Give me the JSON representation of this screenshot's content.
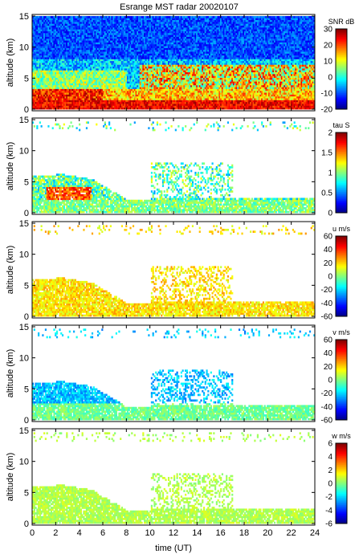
{
  "title": "Esrange MST radar 20020107",
  "chart_data": {
    "type": "heatmap",
    "title": "Esrange MST radar 20020107",
    "xlabel": "time (UT)",
    "xlim": [
      0,
      24
    ],
    "xticks": [
      0,
      2,
      4,
      6,
      8,
      10,
      12,
      14,
      16,
      18,
      20,
      22,
      24
    ],
    "ylabel": "altitude (km)",
    "ylim": [
      0,
      15
    ],
    "yticks": [
      0,
      5,
      10,
      15
    ],
    "panels": [
      {
        "id": "snr",
        "colorbar_title": "SNR dB",
        "clim": [
          -20,
          30
        ],
        "cticks": [
          -20,
          -10,
          0,
          10,
          20,
          30
        ],
        "colormap": "jet",
        "fill": "full",
        "features": "strong echoes (10-30 dB) below 3 km through the day, enhanced layer 3-7 km after 10 UT, noise (-15 to -5 dB) above 8 km"
      },
      {
        "id": "tau",
        "colorbar_title": "tau S",
        "clim": [
          0,
          2
        ],
        "cticks": [
          0,
          0.5,
          1,
          1.5,
          2
        ],
        "colormap": "jet",
        "fill": "sparse",
        "features": "values 0.5-1.5 s, maxima near 1.8 s around 1.5-5 UT at 2-4 km"
      },
      {
        "id": "u",
        "colorbar_title": "u m/s",
        "clim": [
          -60,
          60
        ],
        "cticks": [
          -60,
          -40,
          -20,
          0,
          20,
          40,
          60
        ],
        "colormap": "jet",
        "fill": "sparse",
        "features": "zonal wind mostly +10 to +30 m/s"
      },
      {
        "id": "v",
        "colorbar_title": "v m/s",
        "clim": [
          -60,
          60
        ],
        "cticks": [
          -60,
          -40,
          -20,
          0,
          20,
          40,
          60
        ],
        "colormap": "jet",
        "fill": "sparse",
        "features": "meridional wind mostly -10 to -30 m/s, near 0 at low altitude"
      },
      {
        "id": "w",
        "colorbar_title": "w m/s",
        "clim": [
          -6,
          6
        ],
        "cticks": [
          -6,
          -4,
          -2,
          0,
          2,
          4,
          6
        ],
        "colormap": "jet",
        "fill": "sparse",
        "features": "vertical wind near 0 to +1 m/s"
      }
    ]
  }
}
